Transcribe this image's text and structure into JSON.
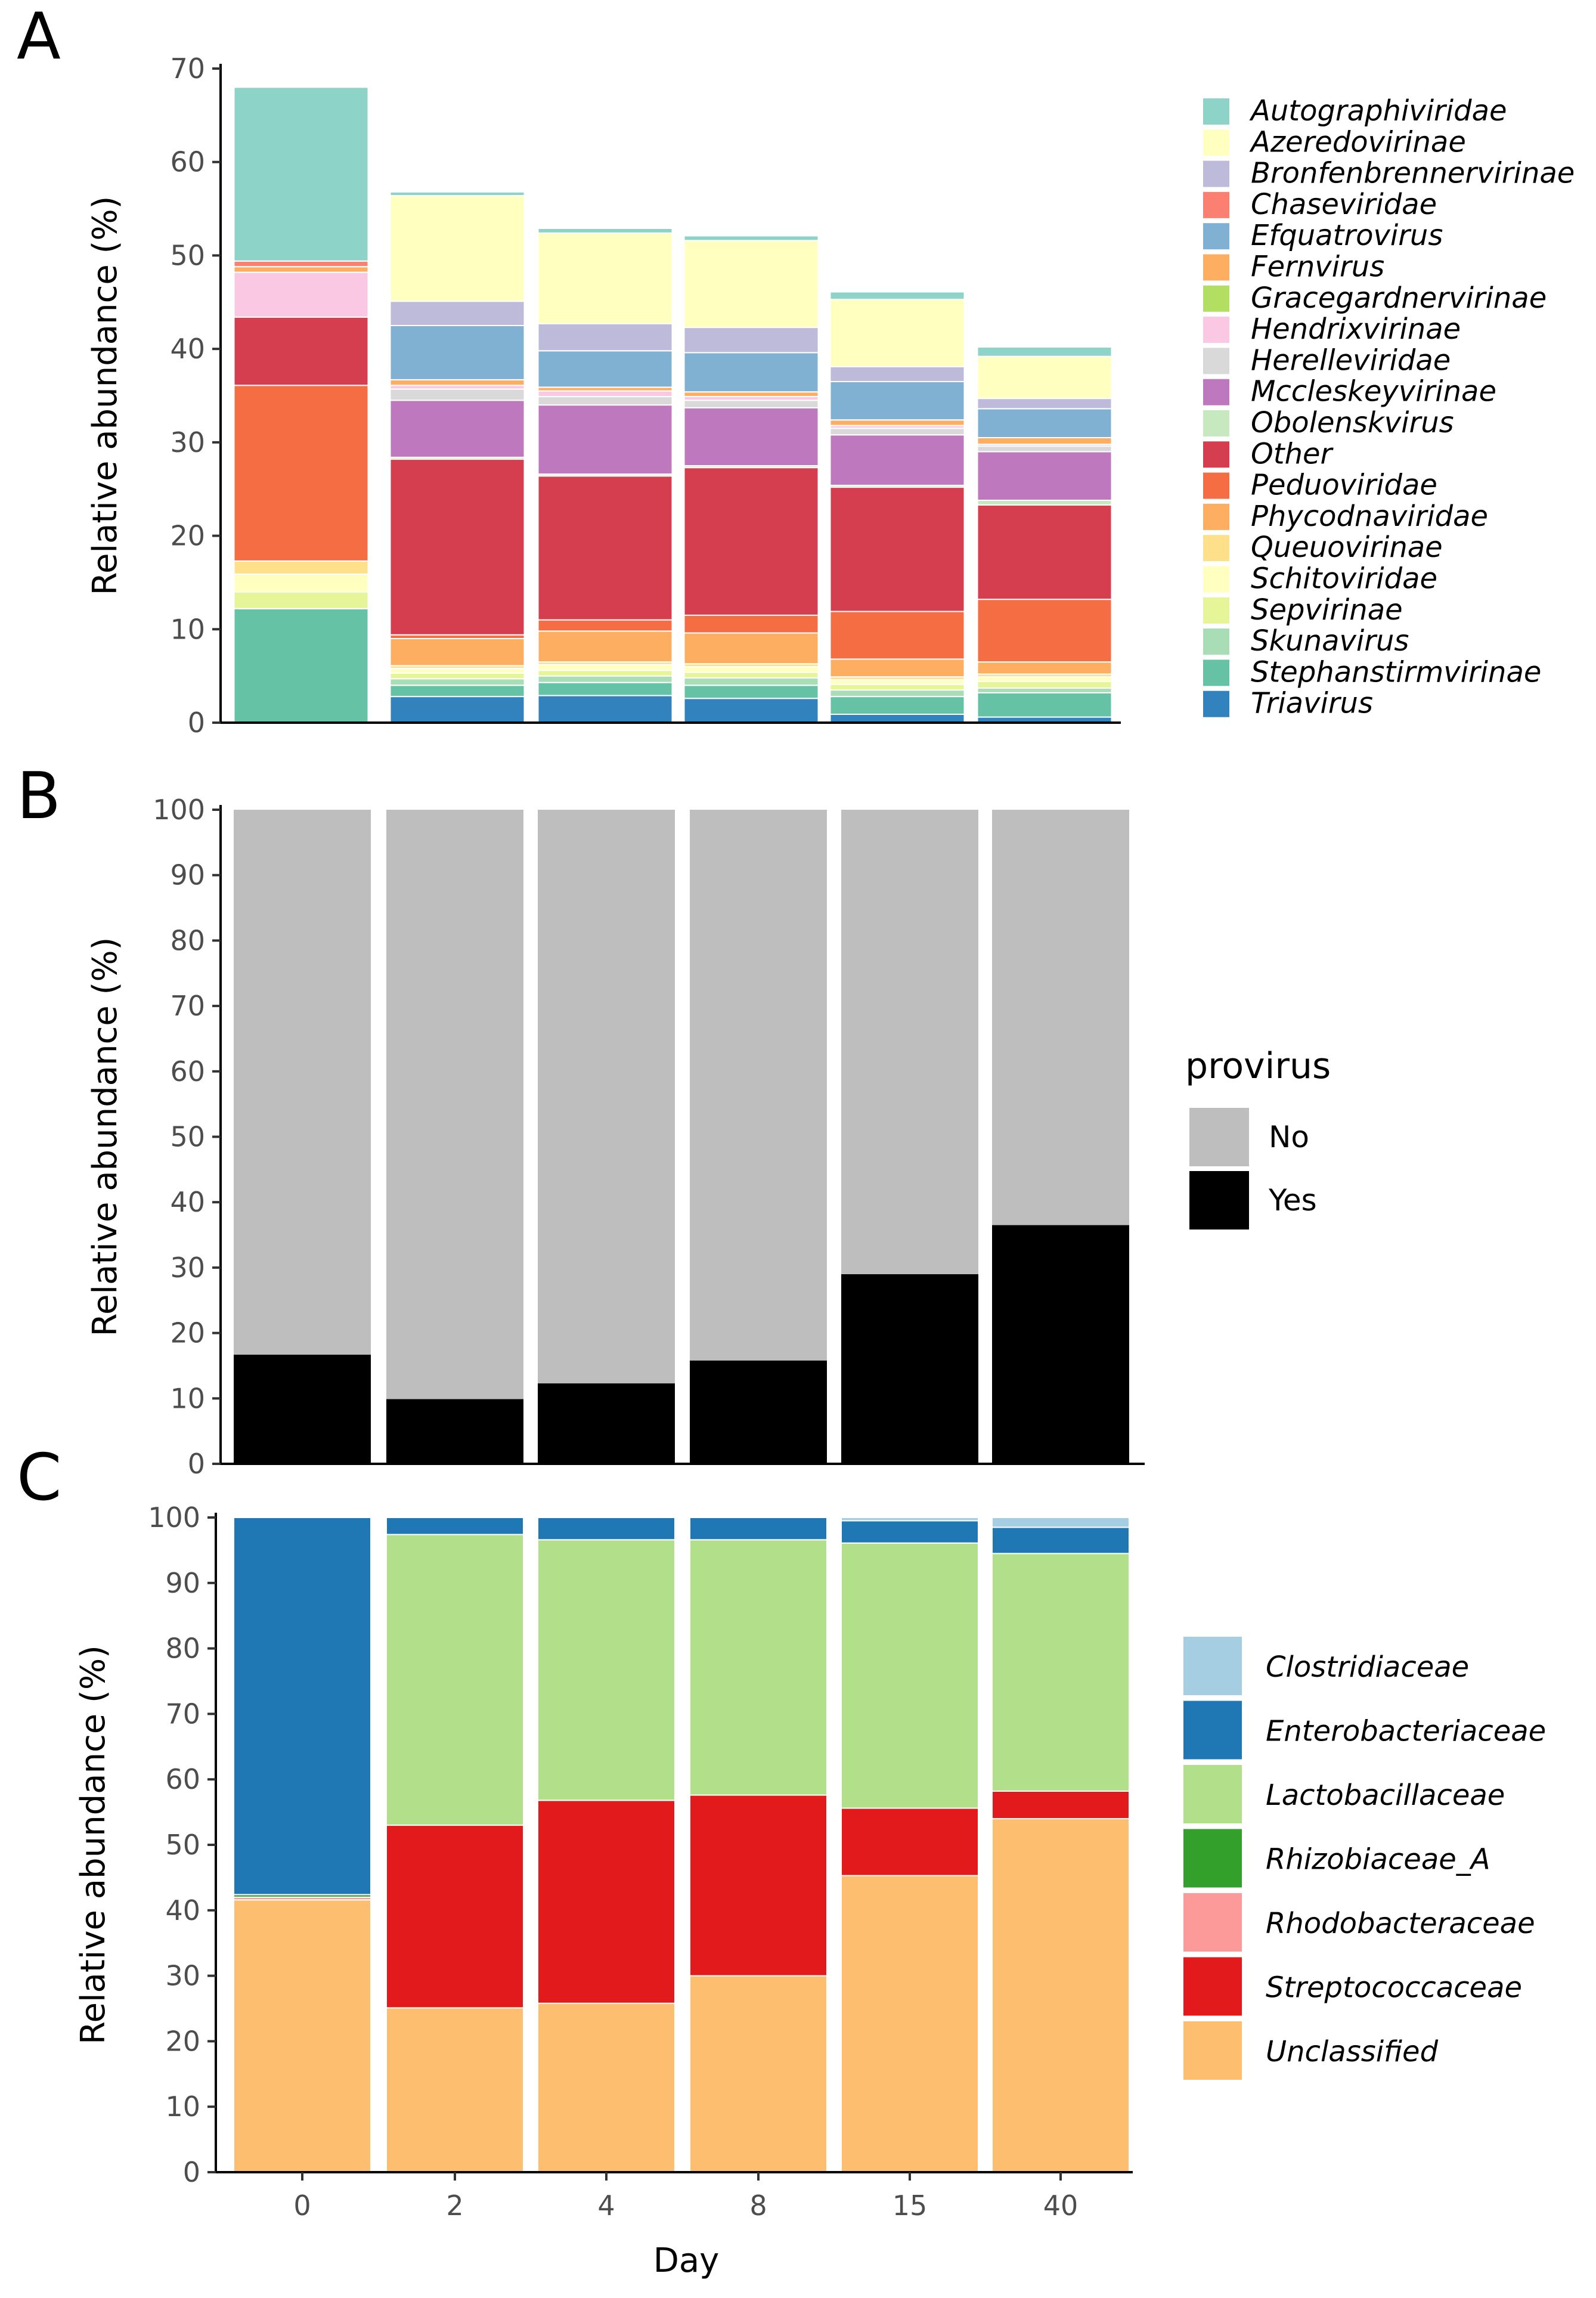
{
  "chart_data": [
    {
      "panel": "A",
      "type": "bar",
      "stacked": true,
      "categories": [
        "0",
        "2",
        "4",
        "8",
        "15",
        "40"
      ],
      "ylabel": "Relative abundance (%)",
      "xlabel": "",
      "ylim": [
        0,
        70
      ],
      "yticks": [
        0,
        10,
        20,
        30,
        40,
        50,
        60,
        70
      ],
      "legend_title": "",
      "series": [
        {
          "name": "Triavirus",
          "color": "#3182bd",
          "values": [
            0,
            2.8,
            2.9,
            2.6,
            0.9,
            0.6
          ]
        },
        {
          "name": "Stephanstirmvirinae",
          "color": "#66c2a5",
          "values": [
            12.2,
            1.2,
            1.4,
            1.4,
            1.9,
            2.6
          ]
        },
        {
          "name": "Skunavirus",
          "color": "#a8ddb5",
          "values": [
            0,
            0.7,
            0.7,
            0.8,
            0.7,
            0.5
          ]
        },
        {
          "name": "Sepvirinae",
          "color": "#e6f598",
          "values": [
            1.8,
            0.6,
            0.6,
            0.6,
            0.6,
            0.7
          ]
        },
        {
          "name": "Schitoviridae",
          "color": "#ffffbf",
          "values": [
            1.9,
            0.5,
            0.6,
            0.6,
            0.5,
            0.5
          ]
        },
        {
          "name": "Queuovirinae",
          "color": "#fee08b",
          "values": [
            1.4,
            0.3,
            0.3,
            0.3,
            0.3,
            0.3
          ]
        },
        {
          "name": "Phycodnaviridae",
          "color": "#fdae61",
          "values": [
            0,
            2.9,
            3.3,
            3.3,
            1.9,
            1.3
          ]
        },
        {
          "name": "Peduoviridae",
          "color": "#f46d43",
          "values": [
            18.8,
            0.4,
            1.2,
            1.9,
            5.1,
            6.7
          ]
        },
        {
          "name": "Other",
          "color": "#d53e4f",
          "values": [
            7.3,
            18.8,
            15.4,
            15.8,
            13.3,
            10.1
          ]
        },
        {
          "name": "Obolenskvirus",
          "color": "#c7e9c0",
          "values": [
            0,
            0.2,
            0.2,
            0.2,
            0.2,
            0.5
          ]
        },
        {
          "name": "Mccleskeyvirinae",
          "color": "#be78be",
          "values": [
            0,
            6.1,
            7.4,
            6.2,
            5.4,
            5.2
          ]
        },
        {
          "name": "Herelleviridae",
          "color": "#d9d9d9",
          "values": [
            0,
            1.2,
            0.9,
            0.8,
            0.7,
            0.6
          ]
        },
        {
          "name": "Hendrixvirinae",
          "color": "#fbc8e3",
          "values": [
            4.8,
            0.4,
            0.6,
            0.4,
            0.3,
            0.2
          ]
        },
        {
          "name": "Gracegardnervirinae",
          "color": "#b2df62",
          "values": [
            0,
            0,
            0,
            0,
            0,
            0
          ]
        },
        {
          "name": "Fernvirus",
          "color": "#fdae61",
          "values": [
            0.6,
            0.6,
            0.4,
            0.5,
            0.6,
            0.7
          ]
        },
        {
          "name": "Efquatrovirus",
          "color": "#80b1d3",
          "values": [
            0,
            5.8,
            3.9,
            4.2,
            4.1,
            3.1
          ]
        },
        {
          "name": "Chaseviridae",
          "color": "#fb8072",
          "values": [
            0.6,
            0,
            0,
            0,
            0,
            0
          ]
        },
        {
          "name": "Bronfenbrennervirinae",
          "color": "#bebada",
          "values": [
            0,
            2.6,
            2.9,
            2.7,
            1.6,
            1.1
          ]
        },
        {
          "name": "Azeredovirinae",
          "color": "#ffffbf",
          "values": [
            0,
            11.3,
            9.7,
            9.3,
            7.2,
            4.5
          ]
        },
        {
          "name": "Autographiviridae",
          "color": "#8dd3c7",
          "values": [
            18.6,
            0.4,
            0.5,
            0.5,
            0.8,
            1.0
          ]
        }
      ]
    },
    {
      "panel": "B",
      "type": "bar",
      "stacked": true,
      "categories": [
        "0",
        "2",
        "4",
        "8",
        "15",
        "40"
      ],
      "ylabel": "Relative abundance (%)",
      "xlabel": "",
      "ylim": [
        0,
        100
      ],
      "yticks": [
        0,
        10,
        20,
        30,
        40,
        50,
        60,
        70,
        80,
        90,
        100
      ],
      "legend_title": "provirus",
      "series": [
        {
          "name": "Yes",
          "color": "#000000",
          "values": [
            16.7,
            9.9,
            12.3,
            15.8,
            29.0,
            36.5
          ]
        },
        {
          "name": "No",
          "color": "#bebebe",
          "values": [
            83.3,
            90.1,
            87.7,
            84.2,
            71.0,
            63.5
          ]
        }
      ]
    },
    {
      "panel": "C",
      "type": "bar",
      "stacked": true,
      "categories": [
        "0",
        "2",
        "4",
        "8",
        "15",
        "40"
      ],
      "ylabel": "Relative abundance (%)",
      "xlabel": "Day",
      "ylim": [
        0,
        100
      ],
      "yticks": [
        0,
        10,
        20,
        30,
        40,
        50,
        60,
        70,
        80,
        90,
        100
      ],
      "legend_title": "",
      "series": [
        {
          "name": "Unclassified",
          "color": "#fdbf6f",
          "values": [
            41.6,
            25.1,
            25.8,
            30.0,
            45.3,
            54.0
          ]
        },
        {
          "name": "Streptococcaceae",
          "color": "#e31a1c",
          "values": [
            0,
            27.9,
            31.0,
            27.6,
            10.3,
            4.2
          ]
        },
        {
          "name": "Rhodobacteraceae",
          "color": "#fb9a99",
          "values": [
            0.4,
            0,
            0,
            0,
            0,
            0
          ]
        },
        {
          "name": "Rhizobiaceae_A",
          "color": "#33a02c",
          "values": [
            0.4,
            0,
            0,
            0,
            0,
            0
          ]
        },
        {
          "name": "Lactobacillaceae",
          "color": "#b2df8a",
          "values": [
            0,
            44.4,
            39.8,
            39.0,
            40.5,
            36.3
          ]
        },
        {
          "name": "Enterobacteriaceae",
          "color": "#1f78b4",
          "values": [
            57.6,
            2.6,
            3.4,
            3.4,
            3.4,
            4.0
          ]
        },
        {
          "name": "Clostridiaceae",
          "color": "#a6cee3",
          "values": [
            0,
            0,
            0,
            0,
            0.5,
            1.5
          ]
        }
      ]
    }
  ]
}
